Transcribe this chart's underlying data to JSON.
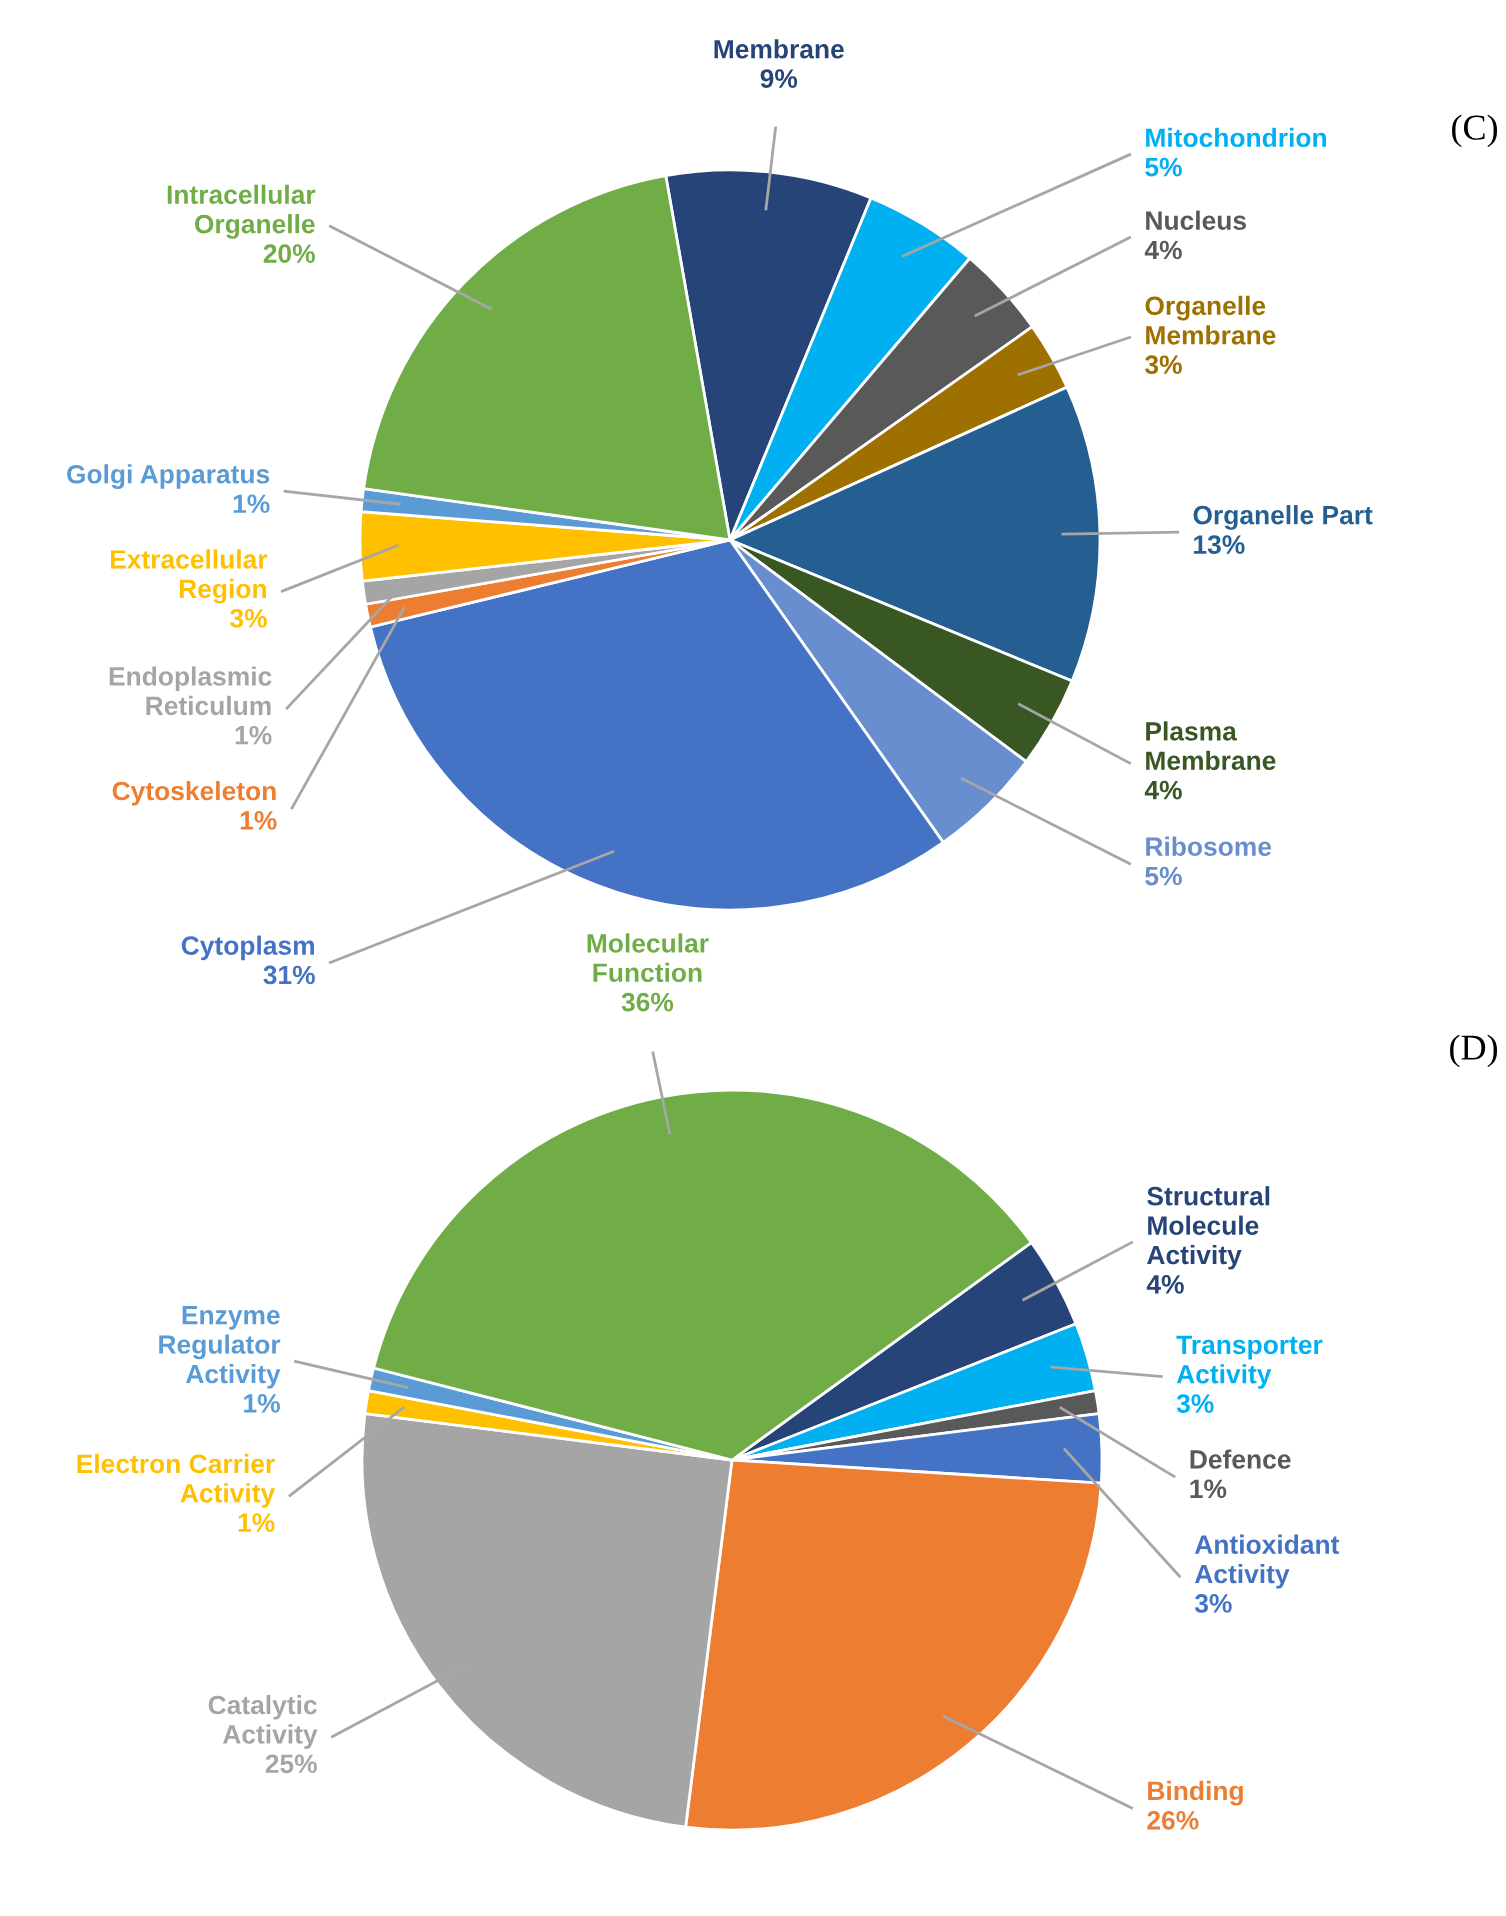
{
  "chart_data": [
    {
      "type": "pie",
      "title": "(C)",
      "categories": [
        "Membrane",
        "Mitochondrion",
        "Nucleus",
        "Organelle\nMembrane",
        "Organelle Part",
        "Plasma\nMembrane",
        "Ribosome",
        "Cytoplasm",
        "Cytoskeleton",
        "Endoplasmic\nReticulum",
        "Extracellular\nRegion",
        "Golgi Apparatus",
        "Intracellular\nOrganelle"
      ],
      "values": [
        9,
        5,
        4,
        3,
        13,
        4,
        5,
        31,
        1,
        1,
        3,
        1,
        20
      ],
      "value_labels": [
        "9%",
        "5%",
        "4%",
        "3%",
        "13%",
        "4%",
        "5%",
        "31%",
        "1%",
        "1%",
        "3%",
        "1%",
        "20%"
      ],
      "colors": [
        "#264478",
        "#00b0f0",
        "#595959",
        "#9e7000",
        "#255e91",
        "#385723",
        "#698ed0",
        "#4472c4",
        "#ed7d31",
        "#a5a5a5",
        "#ffc000",
        "#5b9bd5",
        "#70ad47"
      ]
    },
    {
      "type": "pie",
      "title": "(D)",
      "categories": [
        "Structural\nMolecule\nActivity",
        "Transporter\nActivity",
        "Defence",
        "Antioxidant\nActivity",
        "Binding",
        "Catalytic\nActivity",
        "Electron Carrier\nActivity",
        "Enzyme\nRegulator\nActivity",
        "Molecular\nFunction"
      ],
      "values": [
        4,
        3,
        1,
        3,
        26,
        25,
        1,
        1,
        36
      ],
      "value_labels": [
        "4%",
        "3%",
        "1%",
        "3%",
        "26%",
        "25%",
        "1%",
        "1%",
        "36%"
      ],
      "colors": [
        "#264478",
        "#00b0f0",
        "#595959",
        "#4472c4",
        "#ed7d31",
        "#a5a5a5",
        "#ffc000",
        "#5b9bd5",
        "#70ad47"
      ]
    }
  ]
}
